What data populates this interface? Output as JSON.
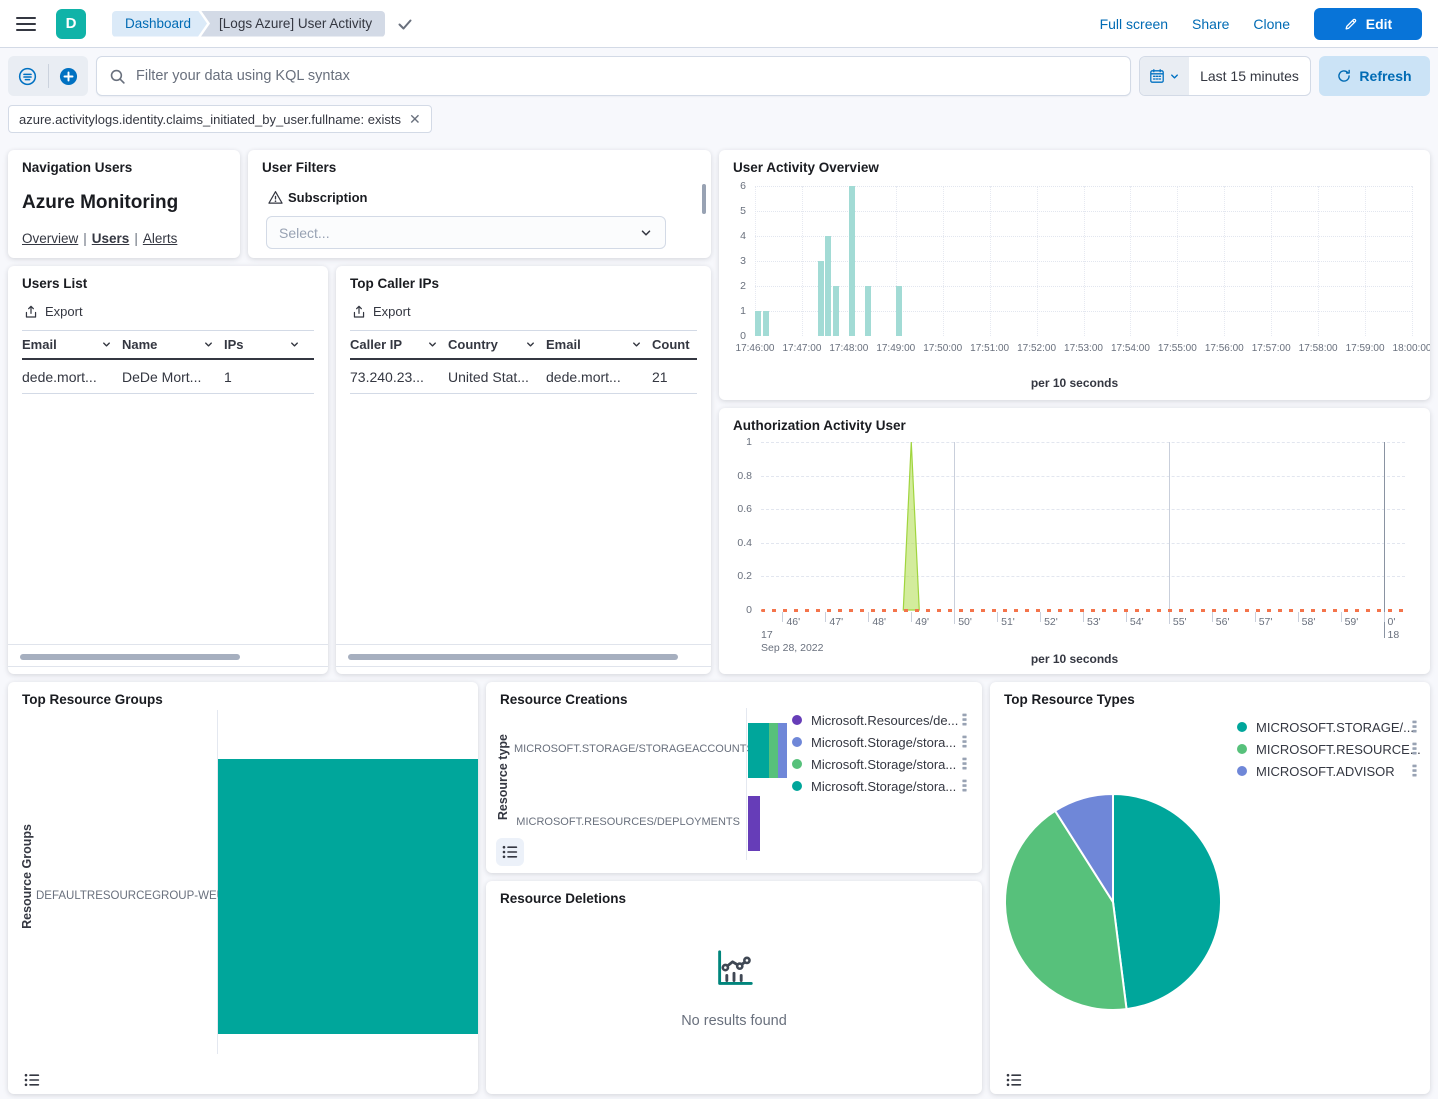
{
  "header": {
    "logo_letter": "D",
    "breadcrumbs": [
      "Dashboard",
      "[Logs Azure] User Activity"
    ],
    "actions": [
      "Full screen",
      "Share",
      "Clone"
    ],
    "edit_label": "Edit"
  },
  "query_bar": {
    "placeholder": "Filter your data using KQL syntax",
    "time_range": "Last 15 minutes",
    "refresh_label": "Refresh"
  },
  "filter_pill": {
    "label": "azure.activitylogs.identity.claims_initiated_by_user.fullname: exists"
  },
  "panels": {
    "navigation": {
      "title": "Navigation Users",
      "heading": "Azure Monitoring",
      "links": [
        "Overview",
        "Users",
        "Alerts"
      ],
      "active_link": "Users"
    },
    "user_filters": {
      "title": "User Filters",
      "field_label": "Subscription",
      "select_placeholder": "Select..."
    },
    "users_list": {
      "title": "Users List",
      "export_label": "Export",
      "columns": [
        "Email",
        "Name",
        "IPs"
      ],
      "rows": [
        [
          "dede.mort...",
          "DeDe Mort...",
          "1"
        ]
      ]
    },
    "top_caller_ips": {
      "title": "Top Caller IPs",
      "export_label": "Export",
      "columns": [
        "Caller IP",
        "Country",
        "Email",
        "Count"
      ],
      "rows": [
        [
          "73.240.23...",
          "United Stat...",
          "dede.mort...",
          "21"
        ]
      ]
    }
  },
  "chart_data": [
    {
      "id": "user_activity_overview",
      "type": "bar",
      "title": "User Activity Overview",
      "xlabel": "per 10 seconds",
      "ylim": [
        0,
        6
      ],
      "yticks": [
        0,
        1,
        2,
        3,
        4,
        5,
        6
      ],
      "x_tick_labels": [
        "17:46:00",
        "17:47:00",
        "17:48:00",
        "17:49:00",
        "17:50:00",
        "17:51:00",
        "17:52:00",
        "17:53:00",
        "17:54:00",
        "17:55:00",
        "17:56:00",
        "17:57:00",
        "17:58:00",
        "17:59:00",
        "18:00:00"
      ],
      "bucket_interval_s": 10,
      "x_domain_s": [
        0,
        840
      ],
      "bars": [
        {
          "time": "17:46:00",
          "offset_s": 0,
          "count": 1
        },
        {
          "time": "17:46:10",
          "offset_s": 10,
          "count": 1
        },
        {
          "time": "17:47:20",
          "offset_s": 80,
          "count": 3
        },
        {
          "time": "17:47:30",
          "offset_s": 90,
          "count": 4
        },
        {
          "time": "17:47:40",
          "offset_s": 100,
          "count": 2
        },
        {
          "time": "17:48:00",
          "offset_s": 120,
          "count": 6
        },
        {
          "time": "17:48:20",
          "offset_s": 140,
          "count": 2
        },
        {
          "time": "17:49:00",
          "offset_s": 180,
          "count": 2
        }
      ]
    },
    {
      "id": "authorization_activity_user",
      "type": "area",
      "title": "Authorization Activity User",
      "xlabel": "per 10 seconds",
      "date_label": "Sep 28, 2022",
      "hour_left": "17",
      "hour_right": "18",
      "ylim": [
        0,
        1
      ],
      "yticks": [
        0,
        0.2,
        0.4,
        0.6,
        0.8,
        1
      ],
      "x_domain_minutes": [
        45.5,
        60.5
      ],
      "x_ticks": [
        {
          "m": 46,
          "label": "46'"
        },
        {
          "m": 47,
          "label": "47'"
        },
        {
          "m": 48,
          "label": "48'"
        },
        {
          "m": 49,
          "label": "49'"
        },
        {
          "m": 50,
          "label": "50'"
        },
        {
          "m": 51,
          "label": "51'"
        },
        {
          "m": 52,
          "label": "52'"
        },
        {
          "m": 53,
          "label": "53'"
        },
        {
          "m": 54,
          "label": "54'"
        },
        {
          "m": 55,
          "label": "55'"
        },
        {
          "m": 56,
          "label": "56'"
        },
        {
          "m": 57,
          "label": "57'"
        },
        {
          "m": 58,
          "label": "58'"
        },
        {
          "m": 59,
          "label": "59'"
        },
        {
          "m": 60,
          "label": "0'"
        }
      ],
      "vlines": [
        {
          "m": 50
        },
        {
          "m": 55
        },
        {
          "m": 60,
          "strong": true
        }
      ],
      "spike": {
        "minute": 49,
        "value": 1
      },
      "baseline_value": 0
    },
    {
      "id": "top_resource_groups",
      "type": "horizontal_bar",
      "title": "Top Resource Groups",
      "ylabel": "Resource Groups",
      "categories": [
        "DEFAULTRESOURCEGROUP-WEU"
      ],
      "bar_fills_panel": true,
      "color": "#00A69B"
    },
    {
      "id": "resource_creations",
      "type": "horizontal_stacked_bar",
      "title": "Resource Creations",
      "ylabel": "Resource type",
      "categories": [
        "MICROSOFT.STORAGE/STORAGEACCOUNTS",
        "MICROSOFT.RESOURCES/DEPLOYMENTS"
      ],
      "series": [
        {
          "name": "Microsoft.Resources/de...",
          "color": "#663DB8",
          "values": [
            0,
            5
          ]
        },
        {
          "name": "Microsoft.Storage/stora...",
          "color": "#6F87D8",
          "values": [
            4,
            0
          ]
        },
        {
          "name": "Microsoft.Storage/stora...",
          "color": "#57C17B",
          "values": [
            4,
            0
          ]
        },
        {
          "name": "Microsoft.Storage/stora...",
          "color": "#00A69B",
          "values": [
            9,
            0
          ]
        }
      ]
    },
    {
      "id": "resource_deletions",
      "type": "empty",
      "title": "Resource Deletions",
      "message": "No results found"
    },
    {
      "id": "top_resource_types",
      "type": "pie",
      "title": "Top Resource Types",
      "slices": [
        {
          "label": "MICROSOFT.STORAGE/...",
          "percent": 48,
          "color": "#00A69B"
        },
        {
          "label": "MICROSOFT.RESOURCE...",
          "percent": 43,
          "color": "#57C17B"
        },
        {
          "label": "MICROSOFT.ADVISOR",
          "percent": 9,
          "color": "#6F87D8"
        }
      ]
    }
  ],
  "colors": {
    "teal": "#00A69B",
    "green": "#57C17B",
    "periwinkle": "#6F87D8",
    "purple": "#663DB8",
    "histogram": "#A2DBD5",
    "spike_fill": "rgba(174,221,74,0.55)",
    "spike_stroke": "#A0D53E",
    "baseline_orange": "#F4744B",
    "link_blue": "#006BB4",
    "primary_button": "#0874D8"
  }
}
